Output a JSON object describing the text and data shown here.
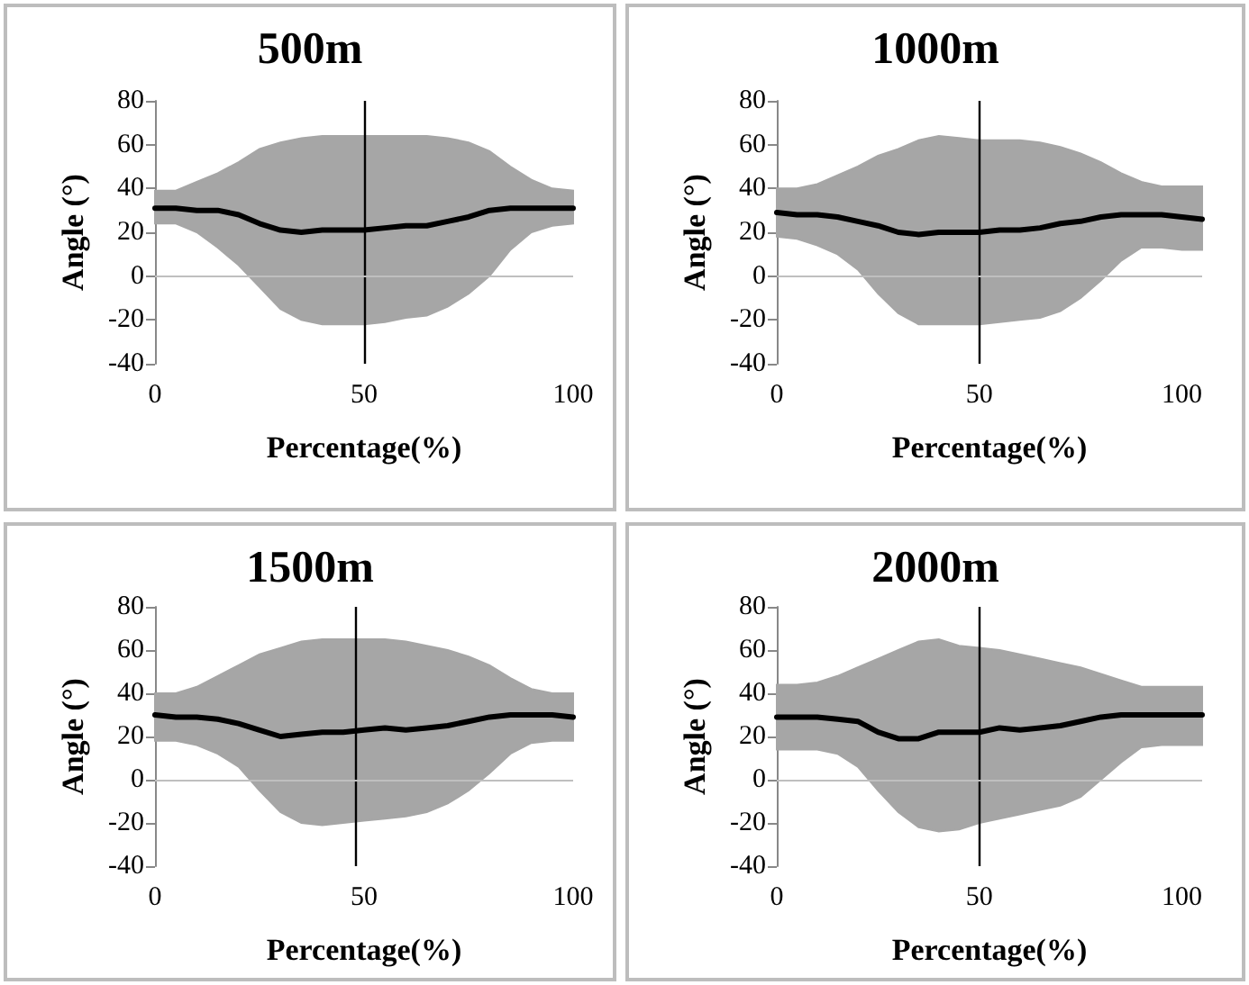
{
  "chart_data": [
    {
      "type": "line",
      "title": "500m",
      "xlabel": "Percentage(%)",
      "ylabel": "Angle (°)",
      "xlim": [
        0,
        100
      ],
      "xticks": [
        0,
        50,
        100
      ],
      "ylim": [
        -40,
        80
      ],
      "yticks": [
        -40,
        -20,
        0,
        20,
        40,
        60,
        80
      ],
      "grid": false,
      "marker": "none",
      "line_style": "solid",
      "x": [
        0,
        5,
        10,
        15,
        20,
        25,
        30,
        35,
        40,
        45,
        50,
        55,
        60,
        65,
        70,
        75,
        80,
        85,
        90,
        95,
        100
      ],
      "series": [
        {
          "color": "#000000",
          "values": [
            31,
            31,
            30,
            30,
            28,
            24,
            21,
            20,
            21,
            21,
            21,
            22,
            23,
            23,
            25,
            27,
            30,
            31,
            31,
            31,
            31
          ],
          "upper": [
            39,
            39,
            43,
            47,
            52,
            58,
            61,
            63,
            64,
            64,
            64,
            64,
            64,
            64,
            63,
            61,
            57,
            50,
            44,
            40,
            39
          ],
          "lower": [
            24,
            24,
            20,
            13,
            5,
            -5,
            -15,
            -20,
            -22,
            -22,
            -22,
            -21,
            -19,
            -18,
            -14,
            -8,
            0,
            12,
            20,
            23,
            24
          ]
        }
      ],
      "ref_lines": [
        {
          "axis": "x",
          "value": 50,
          "color": "#000000"
        },
        {
          "axis": "y",
          "value": 0,
          "color": "#bfbfbf"
        }
      ]
    },
    {
      "type": "line",
      "title": "1000m",
      "xlabel": "Percentage(%)",
      "ylabel": "Angle (°)",
      "xlim": [
        0,
        105
      ],
      "xticks": [
        0,
        50,
        100
      ],
      "ylim": [
        -40,
        80
      ],
      "yticks": [
        -40,
        -20,
        0,
        20,
        40,
        60,
        80
      ],
      "grid": false,
      "marker": "none",
      "line_style": "solid",
      "x": [
        0,
        5,
        10,
        15,
        20,
        25,
        30,
        35,
        40,
        45,
        50,
        55,
        60,
        65,
        70,
        75,
        80,
        85,
        90,
        95,
        100,
        105
      ],
      "series": [
        {
          "color": "#000000",
          "values": [
            29,
            28,
            28,
            27,
            25,
            23,
            20,
            19,
            20,
            20,
            20,
            21,
            21,
            22,
            24,
            25,
            27,
            28,
            28,
            28,
            27,
            26
          ],
          "upper": [
            40,
            40,
            42,
            46,
            50,
            55,
            58,
            62,
            64,
            63,
            62,
            62,
            62,
            61,
            59,
            56,
            52,
            47,
            43,
            41,
            41,
            41
          ],
          "lower": [
            18,
            17,
            14,
            10,
            3,
            -8,
            -17,
            -22,
            -22,
            -22,
            -22,
            -21,
            -20,
            -19,
            -16,
            -10,
            -2,
            7,
            13,
            13,
            12,
            12
          ]
        }
      ],
      "ref_lines": [
        {
          "axis": "x",
          "value": 50,
          "color": "#000000"
        },
        {
          "axis": "y",
          "value": 0,
          "color": "#bfbfbf"
        }
      ]
    },
    {
      "type": "line",
      "title": "1500m",
      "xlabel": "Percentage(%)",
      "ylabel": "Angle (°)",
      "xlim": [
        0,
        100
      ],
      "xticks": [
        0,
        50,
        100
      ],
      "ylim": [
        -40,
        80
      ],
      "yticks": [
        -40,
        -20,
        0,
        20,
        40,
        60,
        80
      ],
      "grid": false,
      "marker": "none",
      "line_style": "solid",
      "x": [
        0,
        5,
        10,
        15,
        20,
        25,
        30,
        35,
        40,
        45,
        50,
        55,
        60,
        65,
        70,
        75,
        80,
        85,
        90,
        95,
        100
      ],
      "series": [
        {
          "color": "#000000",
          "values": [
            30,
            29,
            29,
            28,
            26,
            23,
            20,
            21,
            22,
            22,
            23,
            24,
            23,
            24,
            25,
            27,
            29,
            30,
            30,
            30,
            29
          ],
          "upper": [
            40,
            40,
            43,
            48,
            53,
            58,
            61,
            64,
            65,
            65,
            65,
            65,
            64,
            62,
            60,
            57,
            53,
            47,
            42,
            40,
            40
          ],
          "lower": [
            18,
            18,
            16,
            12,
            6,
            -5,
            -15,
            -20,
            -21,
            -20,
            -19,
            -18,
            -17,
            -15,
            -11,
            -5,
            3,
            12,
            17,
            18,
            18
          ]
        }
      ],
      "ref_lines": [
        {
          "axis": "x",
          "value": 48,
          "color": "#000000"
        },
        {
          "axis": "y",
          "value": 0,
          "color": "#bfbfbf"
        }
      ]
    },
    {
      "type": "line",
      "title": "2000m",
      "xlabel": "Percentage(%)",
      "ylabel": "Angle (°)",
      "xlim": [
        0,
        105
      ],
      "xticks": [
        0,
        50,
        100
      ],
      "ylim": [
        -40,
        80
      ],
      "yticks": [
        -40,
        -20,
        0,
        20,
        40,
        60,
        80
      ],
      "grid": false,
      "marker": "none",
      "line_style": "solid",
      "x": [
        0,
        5,
        10,
        15,
        20,
        25,
        30,
        35,
        40,
        45,
        50,
        55,
        60,
        65,
        70,
        75,
        80,
        85,
        90,
        95,
        100,
        105
      ],
      "series": [
        {
          "color": "#000000",
          "values": [
            29,
            29,
            29,
            28,
            27,
            22,
            19,
            19,
            22,
            22,
            22,
            24,
            23,
            24,
            25,
            27,
            29,
            30,
            30,
            30,
            30,
            30
          ],
          "upper": [
            44,
            44,
            45,
            48,
            52,
            56,
            60,
            64,
            65,
            62,
            61,
            60,
            58,
            56,
            54,
            52,
            49,
            46,
            43,
            43,
            43,
            43
          ],
          "lower": [
            14,
            14,
            14,
            12,
            6,
            -5,
            -15,
            -22,
            -24,
            -23,
            -20,
            -18,
            -16,
            -14,
            -12,
            -8,
            0,
            8,
            15,
            16,
            16,
            16
          ]
        }
      ],
      "ref_lines": [
        {
          "axis": "x",
          "value": 50,
          "color": "#000000"
        },
        {
          "axis": "y",
          "value": 0,
          "color": "#bfbfbf"
        }
      ]
    }
  ]
}
